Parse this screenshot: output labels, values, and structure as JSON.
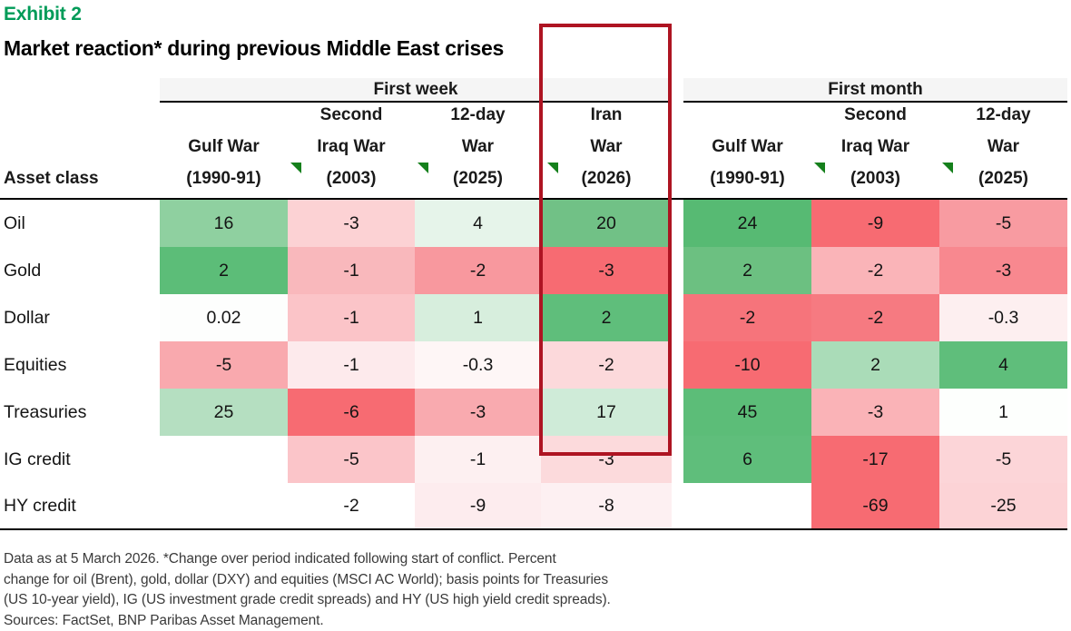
{
  "exhibit_label": "Exhibit 2",
  "title": "Market reaction* during previous Middle East crises",
  "table": {
    "group_headers": {
      "first_week": "First week",
      "first_month": "First month"
    },
    "asset_class_label": "Asset class",
    "week_columns": [
      "Gulf War\n(1990-91)",
      "Second\nIraq War\n(2003)",
      "12-day\nWar\n(2025)",
      "Iran\nWar\n(2026)"
    ],
    "month_columns": [
      "Gulf War\n(1990-91)",
      "Second\nIraq War\n(2003)",
      "12-day\nWar\n(2025)"
    ],
    "highlight_border_color": "#ae1422",
    "flag_color": "#15801c",
    "rows": [
      {
        "label": "Oil",
        "week": [
          {
            "v": "16",
            "c": "#8fd0a0"
          },
          {
            "v": "-3",
            "c": "#fcd2d4"
          },
          {
            "v": "4",
            "c": "#e6f4ea"
          },
          {
            "v": "20",
            "c": "#71c186"
          }
        ],
        "month": [
          {
            "v": "24",
            "c": "#57ba73"
          },
          {
            "v": "-9",
            "c": "#f76b72"
          },
          {
            "v": "-5",
            "c": "#f89ba1"
          }
        ]
      },
      {
        "label": "Gold",
        "week": [
          {
            "v": "2",
            "c": "#5cbd78"
          },
          {
            "v": "-1",
            "c": "#f9b8bc"
          },
          {
            "v": "-2",
            "c": "#f8989e"
          },
          {
            "v": "-3",
            "c": "#f76b72"
          }
        ],
        "month": [
          {
            "v": "2",
            "c": "#6cc081"
          },
          {
            "v": "-2",
            "c": "#fab4b8"
          },
          {
            "v": "-3",
            "c": "#f8888f"
          }
        ]
      },
      {
        "label": "Dollar",
        "week": [
          {
            "v": "0.02",
            "c": "#fdfefd"
          },
          {
            "v": "-1",
            "c": "#fbc4c8"
          },
          {
            "v": "1",
            "c": "#d7eedd"
          },
          {
            "v": "2",
            "c": "#5fbe7b"
          }
        ],
        "month": [
          {
            "v": "-2",
            "c": "#f6747b"
          },
          {
            "v": "-2",
            "c": "#f67a81"
          },
          {
            "v": "-0.3",
            "c": "#fdeff0"
          }
        ]
      },
      {
        "label": "Equities",
        "week": [
          {
            "v": "-5",
            "c": "#f9a9ae"
          },
          {
            "v": "-1",
            "c": "#fdeaec"
          },
          {
            "v": "-0.3",
            "c": "#fef6f6"
          },
          {
            "v": "-2",
            "c": "#fcd9db"
          }
        ],
        "month": [
          {
            "v": "-10",
            "c": "#f76b72"
          },
          {
            "v": "2",
            "c": "#aadcb8"
          },
          {
            "v": "4",
            "c": "#5fbe7b"
          }
        ]
      },
      {
        "label": "Treasuries",
        "week": [
          {
            "v": "25",
            "c": "#b5dfc1"
          },
          {
            "v": "-6",
            "c": "#f76b72"
          },
          {
            "v": "-3",
            "c": "#f9aaaf"
          },
          {
            "v": "17",
            "c": "#cfebd8"
          }
        ],
        "month": [
          {
            "v": "45",
            "c": "#5cbd78"
          },
          {
            "v": "-3",
            "c": "#fab3b7"
          },
          {
            "v": "1",
            "c": "#fdfffd"
          }
        ]
      },
      {
        "label": "IG credit",
        "week": [
          {
            "v": "",
            "c": null
          },
          {
            "v": "-5",
            "c": "#fbc5c9"
          },
          {
            "v": "-1",
            "c": "#fdf0f1"
          },
          {
            "v": "-3",
            "c": "#fcdadc"
          }
        ],
        "month": [
          {
            "v": "6",
            "c": "#5fbe7b"
          },
          {
            "v": "-17",
            "c": "#f76b72"
          },
          {
            "v": "-5",
            "c": "#fcd5d8"
          }
        ]
      },
      {
        "label": "HY credit",
        "week": [
          {
            "v": "",
            "c": null
          },
          {
            "v": "-2",
            "c": null
          },
          {
            "v": "-9",
            "c": "#fdecee"
          },
          {
            "v": "-8",
            "c": "#fdf0f2"
          }
        ],
        "month": [
          {
            "v": "",
            "c": null
          },
          {
            "v": "-69",
            "c": "#f76b72"
          },
          {
            "v": "-25",
            "c": "#fcd3d6"
          }
        ]
      }
    ]
  },
  "footnote": "Data as at 5 March 2026. *Change over period indicated following start of conflict. Percent\nchange for oil (Brent), gold, dollar (DXY) and equities (MSCI AC World); basis points for Treasuries\n(US 10-year yield), IG (US investment grade credit spreads) and HY (US high yield credit spreads).\nSources: FactSet, BNP Paribas Asset Management.",
  "chart_data": {
    "type": "heatmap",
    "title": "Market reaction* during previous Middle East crises",
    "rows": [
      "Oil",
      "Gold",
      "Dollar",
      "Equities",
      "Treasuries",
      "IG credit",
      "HY credit"
    ],
    "column_groups": [
      {
        "group": "First week",
        "columns": [
          "Gulf War (1990-91)",
          "Second Iraq War (2003)",
          "12-day War (2025)",
          "Iran War (2026)"
        ]
      },
      {
        "group": "First month",
        "columns": [
          "Gulf War (1990-91)",
          "Second Iraq War (2003)",
          "12-day War (2025)"
        ]
      }
    ],
    "first_week_values": [
      [
        16,
        -3,
        4,
        20
      ],
      [
        2,
        -1,
        -2,
        -3
      ],
      [
        0.02,
        -1,
        1,
        2
      ],
      [
        -5,
        -1,
        -0.3,
        -2
      ],
      [
        25,
        -6,
        -3,
        17
      ],
      [
        null,
        -5,
        -1,
        -3
      ],
      [
        null,
        -2,
        -9,
        -8
      ]
    ],
    "first_month_values": [
      [
        24,
        -9,
        -5
      ],
      [
        2,
        -2,
        -3
      ],
      [
        -2,
        -2,
        -0.3
      ],
      [
        -10,
        2,
        4
      ],
      [
        45,
        -3,
        1
      ],
      [
        6,
        -17,
        -5
      ],
      [
        null,
        -69,
        -25
      ]
    ],
    "highlighted_column": "Iran War (2026)",
    "color_scale": {
      "positive": "#5cbd78",
      "negative": "#f76b72",
      "neutral": "#ffffff"
    },
    "units": "Percent change for oil, gold, dollar and equities; basis points for Treasuries, IG and HY"
  }
}
